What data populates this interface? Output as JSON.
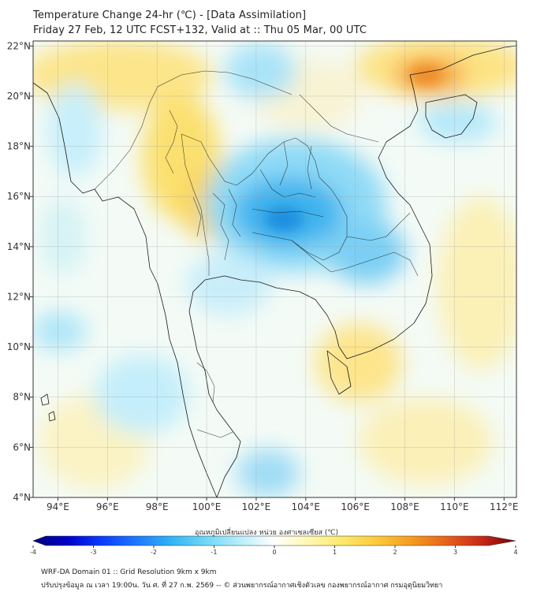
{
  "title": {
    "line1": "Temperature Change 24-hr (℃) - [Data Assimilation]",
    "line2": "Friday 27 Feb, 12 UTC FCST+132, Valid at :: Thu 05 Mar, 00 UTC"
  },
  "map": {
    "lon_labels": [
      "94°E",
      "96°E",
      "98°E",
      "100°E",
      "102°E",
      "104°E",
      "106°E",
      "108°E",
      "110°E",
      "112°E"
    ],
    "lat_labels": [
      "22°N",
      "20°N",
      "18°N",
      "16°N",
      "14°N",
      "12°N",
      "10°N",
      "8°N",
      "6°N",
      "4°N"
    ],
    "lon_values": [
      94,
      96,
      98,
      100,
      102,
      104,
      106,
      108,
      110,
      112
    ],
    "lat_values": [
      22,
      20,
      18,
      16,
      14,
      12,
      10,
      8,
      6,
      4
    ],
    "extent": {
      "lon_min": 93.0,
      "lon_max": 112.5,
      "lat_min": 4.0,
      "lat_max": 22.2
    }
  },
  "colorbar": {
    "title": "อุณหภูมิเปลี่ยนแปลง หน่วย องศาเซลเซียส (℃)",
    "ticks": [
      "-4",
      "-3",
      "-2",
      "-1",
      "0",
      "1",
      "2",
      "3",
      "4"
    ],
    "tick_values": [
      -4,
      -3,
      -2,
      -1,
      0,
      1,
      2,
      3,
      4
    ],
    "min": -4,
    "max": 4,
    "colors": [
      "#00007a",
      "#0000c8",
      "#0a3cff",
      "#1e78ff",
      "#2fb4f5",
      "#6fd7f7",
      "#b7eefb",
      "#ffffff",
      "#fff8b0",
      "#fde86a",
      "#fbc93a",
      "#f59a1e",
      "#e8611a",
      "#c8281a",
      "#7a0000"
    ]
  },
  "footer": {
    "line1": "WRF-DA Domain 01 :: Grid Resolution 9km x 9km",
    "line2": "ปรับปรุงข้อมูล ณ เวลา 19:00น. วัน ศ. ที่ 27 ก.พ. 2569 -- © ส่วนพยากรณ์อากาศเชิงตัวเลข กองพยากรณ์อากาศ กรมอุตุนิยมวิทยา"
  }
}
